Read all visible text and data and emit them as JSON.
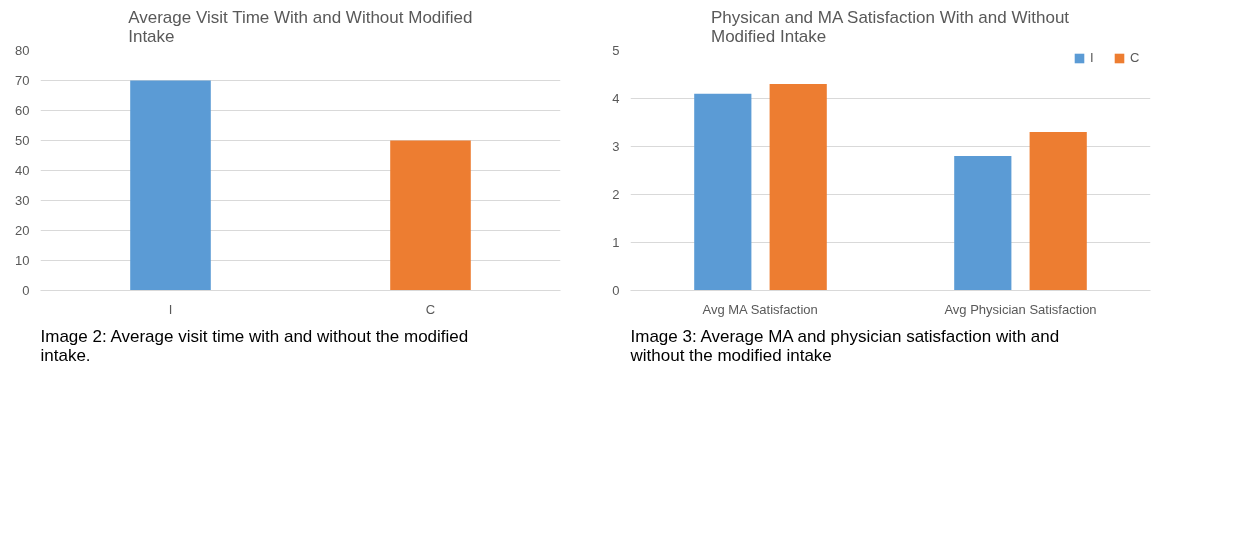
{
  "chart_data": [
    {
      "type": "bar",
      "title": "Average Visit Time With and Without Modified Intake",
      "categories": [
        "I",
        "C"
      ],
      "values": [
        70,
        50
      ],
      "colors": [
        "#5b9bd5",
        "#ed7d31"
      ],
      "ylim": [
        0,
        80
      ],
      "yticks": [
        0,
        10,
        20,
        30,
        40,
        50,
        60,
        70,
        80
      ],
      "grid": "y",
      "annotations": [
        "Image 2: Average visit time with and without the modified intake."
      ]
    },
    {
      "type": "bar",
      "title": "Physican and MA Satisfaction With and Without Modified Intake",
      "categories": [
        "Avg MA Satisfaction",
        "Avg Physician Satisfaction"
      ],
      "series": [
        {
          "name": "I",
          "color": "#5b9bd5",
          "values": [
            4.1,
            2.8
          ]
        },
        {
          "name": "C",
          "color": "#ed7d31",
          "values": [
            4.3,
            3.3
          ]
        }
      ],
      "ylim": [
        0,
        5
      ],
      "yticks": [
        0,
        1,
        2,
        3,
        4,
        5
      ],
      "grid": "y",
      "legend": "top right",
      "annotations": [
        "Image 3: Average MA and physician satisfaction with and without the modified intake"
      ]
    }
  ]
}
